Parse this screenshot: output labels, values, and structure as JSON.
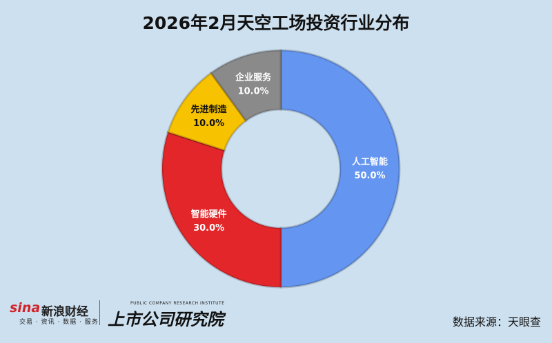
{
  "title": "2026年2月天空工场投资行业分布",
  "chart_data": {
    "type": "pie",
    "donut": true,
    "title": "2026年2月天空工场投资行业分布",
    "slices": [
      {
        "label": "人工智能",
        "value": 50.0,
        "value_label": "50.0%",
        "color": "#6495f0"
      },
      {
        "label": "智能硬件",
        "value": 30.0,
        "value_label": "30.0%",
        "color": "#e3262a"
      },
      {
        "label": "先进制造",
        "value": 10.0,
        "value_label": "10.0%",
        "color": "#f7c200"
      },
      {
        "label": "企业服务",
        "value": 10.0,
        "value_label": "10.0%",
        "color": "#8a8a8a"
      }
    ]
  },
  "footer": {
    "sina_logo": "sina",
    "sina_name": "新浪财经",
    "sina_sub": "交易 · 资讯 · 数据 · 服务",
    "research_en": "PUBLIC COMPANY RESEARCH INSTITUTE",
    "research_cn": "上市公司研究院",
    "source": "数据来源：天眼查"
  }
}
